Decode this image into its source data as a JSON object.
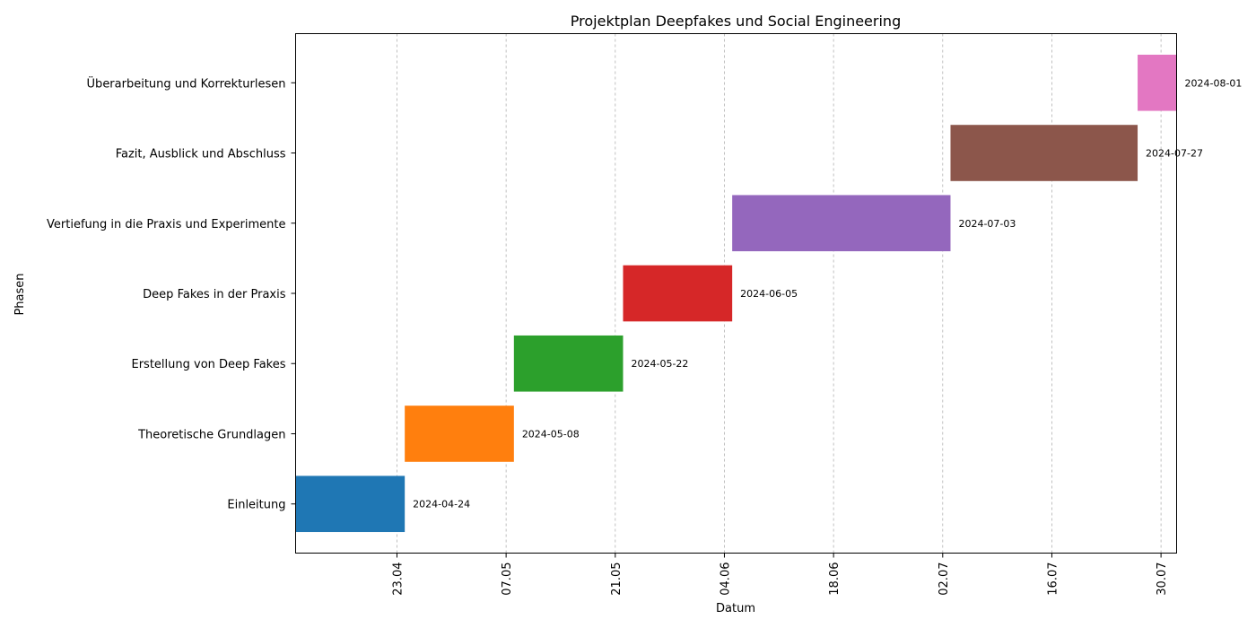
{
  "chart_data": {
    "type": "bar",
    "orientation": "horizontal-gantt",
    "title": "Projektplan Deepfakes und Social Engineering",
    "xlabel": "Datum",
    "ylabel": "Phasen",
    "grid": "x-dashed",
    "xlim": [
      "2024-04-10",
      "2024-08-01"
    ],
    "x_ticks": [
      {
        "date": "2024-04-23",
        "label": "23.04"
      },
      {
        "date": "2024-05-07",
        "label": "07.05"
      },
      {
        "date": "2024-05-21",
        "label": "21.05"
      },
      {
        "date": "2024-06-04",
        "label": "04.06"
      },
      {
        "date": "2024-06-18",
        "label": "18.06"
      },
      {
        "date": "2024-07-02",
        "label": "02.07"
      },
      {
        "date": "2024-07-16",
        "label": "16.07"
      },
      {
        "date": "2024-07-30",
        "label": "30.07"
      }
    ],
    "tasks": [
      {
        "name": "Einleitung",
        "start": "2024-04-10",
        "end": "2024-04-24",
        "label": "2024-04-24",
        "color": "#1f77b4"
      },
      {
        "name": "Theoretische Grundlagen",
        "start": "2024-04-24",
        "end": "2024-05-08",
        "label": "2024-05-08",
        "color": "#ff7f0e"
      },
      {
        "name": "Erstellung von Deep Fakes",
        "start": "2024-05-08",
        "end": "2024-05-22",
        "label": "2024-05-22",
        "color": "#2ca02c"
      },
      {
        "name": "Deep Fakes in der Praxis",
        "start": "2024-05-22",
        "end": "2024-06-05",
        "label": "2024-06-05",
        "color": "#d62728"
      },
      {
        "name": "Vertiefung in die Praxis und Experimente",
        "start": "2024-06-05",
        "end": "2024-07-03",
        "label": "2024-07-03",
        "color": "#9467bd"
      },
      {
        "name": "Fazit, Ausblick und Abschluss",
        "start": "2024-07-03",
        "end": "2024-07-27",
        "label": "2024-07-27",
        "color": "#8c564b"
      },
      {
        "name": "Überarbeitung und Korrekturlesen",
        "start": "2024-07-27",
        "end": "2024-08-01",
        "label": "2024-08-01",
        "color": "#e377c2"
      }
    ]
  }
}
